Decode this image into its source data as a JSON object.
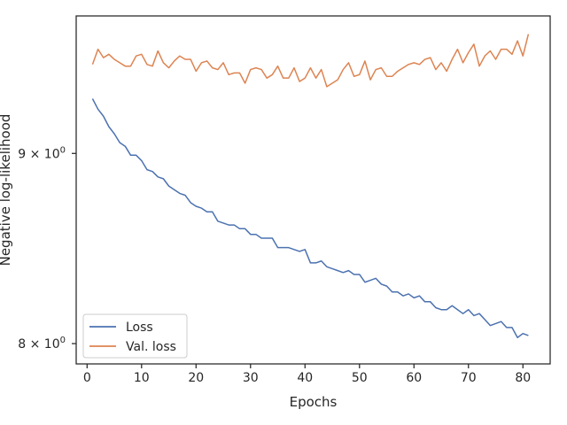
{
  "chart_data": {
    "type": "line",
    "title": "",
    "xlabel": "Epochs",
    "ylabel": "Negative log-likelihood",
    "yscale": "log",
    "xlim": [
      -2.0,
      85.0
    ],
    "ylim": [
      7.9,
      9.8
    ],
    "grid": false,
    "legend_position": "lower-left",
    "x_ticks": [
      {
        "value": 0,
        "label": "0"
      },
      {
        "value": 10,
        "label": "10"
      },
      {
        "value": 20,
        "label": "20"
      },
      {
        "value": 30,
        "label": "30"
      },
      {
        "value": 40,
        "label": "40"
      },
      {
        "value": 50,
        "label": "50"
      },
      {
        "value": 60,
        "label": "60"
      },
      {
        "value": 70,
        "label": "70"
      },
      {
        "value": 80,
        "label": "80"
      }
    ],
    "y_ticks": [
      {
        "value": 8,
        "label_base": "8 × 10",
        "label_exp": "0"
      },
      {
        "value": 9,
        "label_base": "9 × 10",
        "label_exp": "0"
      }
    ],
    "x": [
      1,
      2,
      3,
      4,
      5,
      6,
      7,
      8,
      9,
      10,
      11,
      12,
      13,
      14,
      15,
      16,
      17,
      18,
      19,
      20,
      21,
      22,
      23,
      24,
      25,
      26,
      27,
      28,
      29,
      30,
      31,
      32,
      33,
      34,
      35,
      36,
      37,
      38,
      39,
      40,
      41,
      42,
      43,
      44,
      45,
      46,
      47,
      48,
      49,
      50,
      51,
      52,
      53,
      54,
      55,
      56,
      57,
      58,
      59,
      60,
      61,
      62,
      63,
      64,
      65,
      66,
      67,
      68,
      69,
      70,
      71,
      72,
      73,
      74,
      75,
      76,
      77,
      78,
      79,
      80,
      81
    ],
    "series": [
      {
        "name": "Loss",
        "color": "#4c72b0",
        "values": [
          9.31,
          9.25,
          9.21,
          9.15,
          9.11,
          9.06,
          9.04,
          8.99,
          8.99,
          8.96,
          8.91,
          8.9,
          8.87,
          8.86,
          8.82,
          8.8,
          8.78,
          8.77,
          8.73,
          8.71,
          8.7,
          8.68,
          8.68,
          8.63,
          8.62,
          8.61,
          8.61,
          8.59,
          8.59,
          8.56,
          8.56,
          8.54,
          8.54,
          8.54,
          8.49,
          8.49,
          8.49,
          8.48,
          8.47,
          8.48,
          8.41,
          8.41,
          8.42,
          8.39,
          8.38,
          8.37,
          8.36,
          8.37,
          8.35,
          8.35,
          8.31,
          8.32,
          8.33,
          8.3,
          8.29,
          8.26,
          8.26,
          8.24,
          8.25,
          8.23,
          8.24,
          8.21,
          8.21,
          8.18,
          8.17,
          8.17,
          8.19,
          8.17,
          8.15,
          8.17,
          8.14,
          8.15,
          8.12,
          8.09,
          8.1,
          8.11,
          8.08,
          8.08,
          8.03,
          8.05,
          8.04
        ]
      },
      {
        "name": "Val. loss",
        "color": "#dd8452",
        "values": [
          9.51,
          9.6,
          9.55,
          9.57,
          9.54,
          9.52,
          9.5,
          9.5,
          9.56,
          9.57,
          9.51,
          9.5,
          9.59,
          9.52,
          9.49,
          9.53,
          9.56,
          9.54,
          9.54,
          9.47,
          9.52,
          9.53,
          9.49,
          9.48,
          9.52,
          9.45,
          9.46,
          9.46,
          9.4,
          9.48,
          9.49,
          9.48,
          9.43,
          9.45,
          9.5,
          9.43,
          9.43,
          9.49,
          9.41,
          9.43,
          9.49,
          9.43,
          9.48,
          9.38,
          9.4,
          9.42,
          9.48,
          9.52,
          9.44,
          9.45,
          9.53,
          9.42,
          9.48,
          9.49,
          9.44,
          9.44,
          9.47,
          9.49,
          9.51,
          9.52,
          9.51,
          9.54,
          9.55,
          9.48,
          9.52,
          9.47,
          9.54,
          9.6,
          9.52,
          9.58,
          9.63,
          9.5,
          9.56,
          9.59,
          9.54,
          9.6,
          9.6,
          9.57,
          9.65,
          9.56,
          9.69
        ]
      }
    ]
  }
}
